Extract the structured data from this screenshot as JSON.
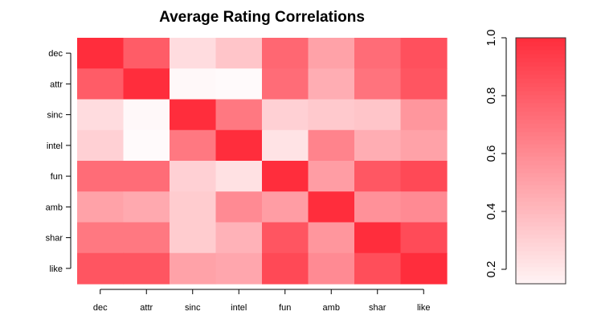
{
  "chart_data": {
    "type": "heatmap",
    "title": "Average Rating Correlations",
    "xlabel": "",
    "ylabel": "",
    "rows": [
      "dec",
      "attr",
      "sinc",
      "intel",
      "fun",
      "amb",
      "shar",
      "like"
    ],
    "columns": [
      "dec",
      "attr",
      "sinc",
      "intel",
      "fun",
      "amb",
      "shar",
      "like"
    ],
    "values": [
      [
        1.0,
        0.8,
        0.25,
        0.35,
        0.75,
        0.5,
        0.73,
        0.85
      ],
      [
        0.8,
        1.0,
        0.13,
        0.12,
        0.73,
        0.45,
        0.7,
        0.83
      ],
      [
        0.25,
        0.13,
        1.0,
        0.68,
        0.3,
        0.33,
        0.35,
        0.55
      ],
      [
        0.3,
        0.12,
        0.68,
        1.0,
        0.22,
        0.63,
        0.45,
        0.5
      ],
      [
        0.73,
        0.73,
        0.3,
        0.23,
        1.0,
        0.52,
        0.82,
        0.88
      ],
      [
        0.5,
        0.47,
        0.32,
        0.6,
        0.52,
        1.0,
        0.57,
        0.6
      ],
      [
        0.68,
        0.68,
        0.32,
        0.43,
        0.83,
        0.55,
        1.0,
        0.87
      ],
      [
        0.83,
        0.83,
        0.5,
        0.48,
        0.88,
        0.6,
        0.86,
        1.0
      ]
    ],
    "color_low": "#ffffff",
    "color_high": "#ff2d3c",
    "colorbar": {
      "range": [
        0.15,
        1.0
      ],
      "ticks": [
        "0.2",
        "0.4",
        "0.6",
        "0.8",
        "1.0"
      ],
      "tick_values": [
        0.2,
        0.4,
        0.6,
        0.8,
        1.0
      ]
    },
    "grid": false,
    "legend_position": "right"
  }
}
